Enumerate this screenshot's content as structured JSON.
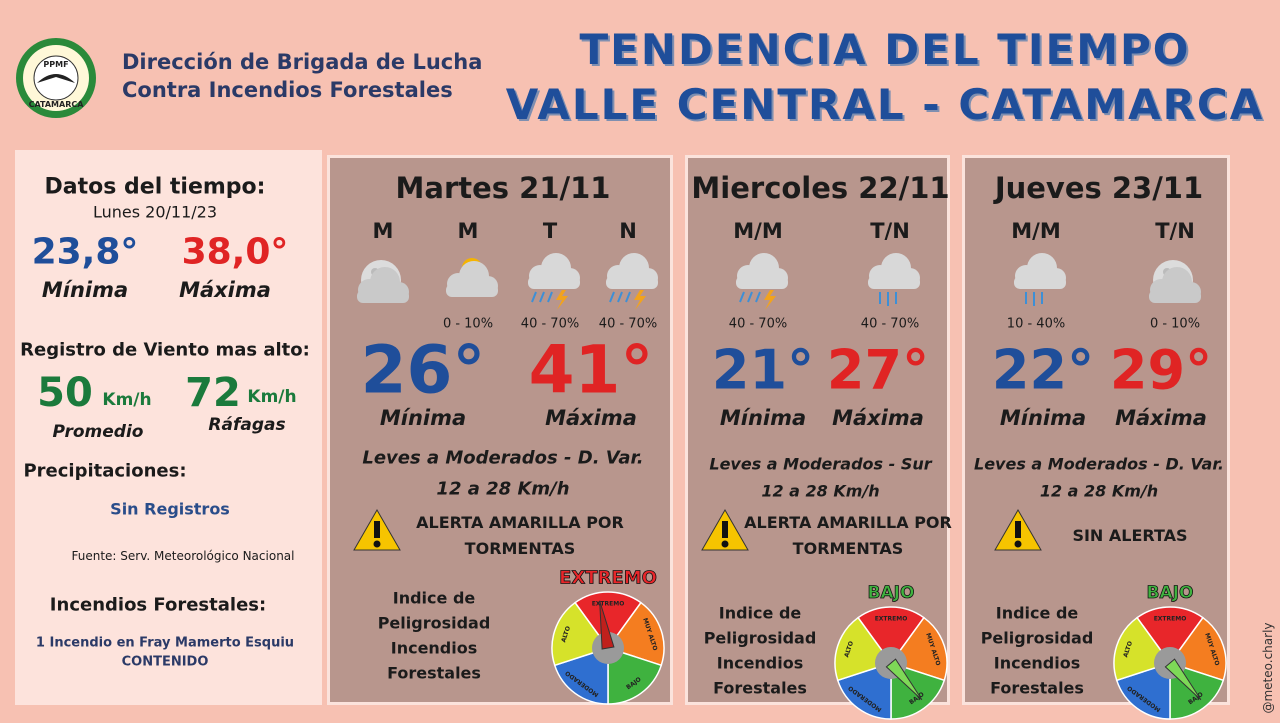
{
  "header": {
    "logo_top": "PPMF",
    "logo_bottom": "CATAMARCA",
    "org_lines": [
      "Dirección de Brigada de Lucha",
      "Contra Incendios Forestales"
    ],
    "title_lines": [
      "TENDENCIA DEL TIEMPO",
      "VALLE CENTRAL - CATAMARCA"
    ]
  },
  "summary": {
    "heading": "Datos del tiempo:",
    "date": "Lunes 20/11/23",
    "min": "23,8°",
    "min_label": "Mínima",
    "max": "38,0°",
    "max_label": "Máxima",
    "wind_heading": "Registro de Viento mas alto:",
    "wind_avg": "50",
    "wind_avg_unit": "Km/h",
    "wind_avg_label": "Promedio",
    "wind_gust": "72",
    "wind_gust_unit": "Km/h",
    "wind_gust_label": "Ráfagas",
    "precip_heading": "Precipitaciones:",
    "precip": "Sin Registros",
    "source": "Fuente: Serv. Meteorológico Nacional",
    "fires_heading": "Incendios Forestales:",
    "fires_lines": [
      "1 Incendio en Fray Mamerto Esquiu",
      "CONTENIDO"
    ]
  },
  "gauge_labels": [
    "EXTREMO",
    "MUY ALTO",
    "BAJO",
    "MODERADO",
    "ALTO"
  ],
  "days": [
    {
      "name": "Martes 21/11",
      "periods": [
        {
          "label": "M"
        },
        {
          "label": "M",
          "prob": "0 - 10%"
        },
        {
          "label": "T",
          "prob": "40 - 70%"
        },
        {
          "label": "N",
          "prob": "40 - 70%"
        }
      ],
      "min": "26°",
      "min_label": "Mínima",
      "max": "41°",
      "max_label": "Máxima",
      "wind": "Leves a Moderados - D. Var.",
      "wind_speed": "12 a 28 Km/h",
      "alert": "ALERTA AMARILLA POR TORMENTAS",
      "index_lines": [
        "Indice de",
        "Peligrosidad",
        "Incendios",
        "Forestales"
      ],
      "level": "EXTREMO"
    },
    {
      "name": "Miercoles 22/11",
      "periods": [
        {
          "label": "M/M",
          "prob": "40 - 70%"
        },
        {
          "label": "T/N",
          "prob": "40 - 70%"
        }
      ],
      "min": "21°",
      "min_label": "Mínima",
      "max": "27°",
      "max_label": "Máxima",
      "wind": "Leves a Moderados - Sur",
      "wind_speed": "12 a 28 Km/h",
      "alert": "ALERTA AMARILLA POR TORMENTAS",
      "index_lines": [
        "Indice de",
        "Peligrosidad",
        "Incendios",
        "Forestales"
      ],
      "level": "BAJO"
    },
    {
      "name": "Jueves 23/11",
      "periods": [
        {
          "label": "M/M",
          "prob": "10 - 40%"
        },
        {
          "label": "T/N",
          "prob": "0 - 10%"
        }
      ],
      "min": "22°",
      "min_label": "Mínima",
      "max": "29°",
      "max_label": "Máxima",
      "wind": "Leves a Moderados - D. Var.",
      "wind_speed": "12 a 28 Km/h",
      "alert": "SIN ALERTAS",
      "index_lines": [
        "Indice de",
        "Peligrosidad",
        "Incendios",
        "Forestales"
      ],
      "level": "BAJO"
    }
  ],
  "watermark": "@meteo.charly"
}
